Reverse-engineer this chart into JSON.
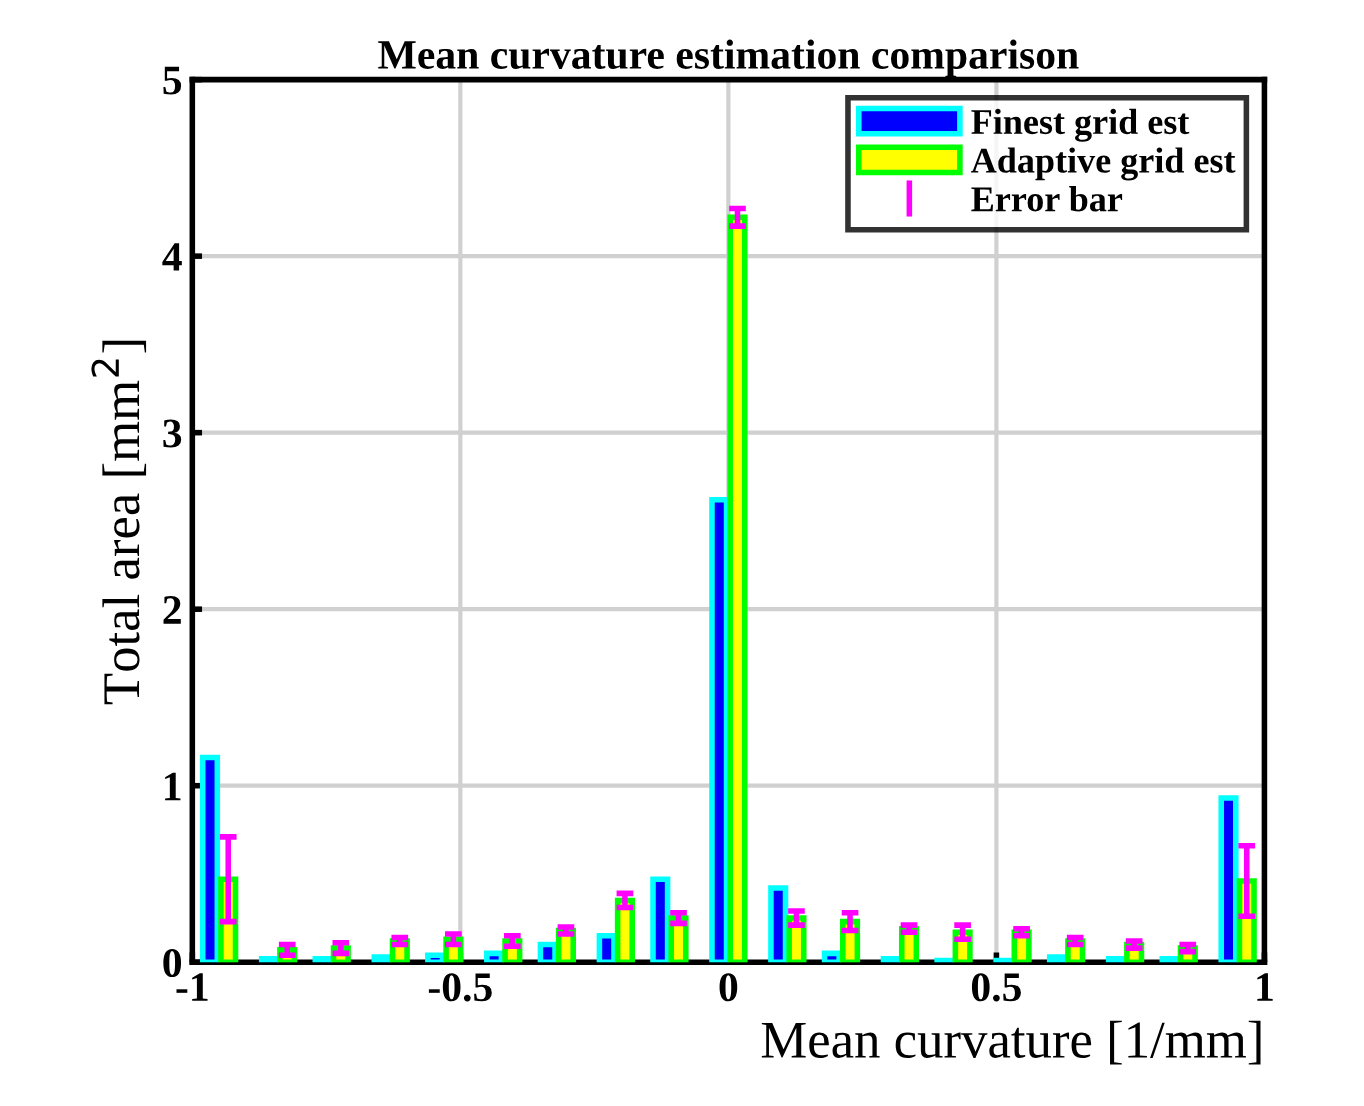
{
  "chart_data": {
    "type": "bar",
    "title": "Mean curvature estimation comparison",
    "xlabel": "Mean curvature [1/mm]",
    "ylabel": "Total area [mm$^{2}$]",
    "x": [
      -0.95,
      -0.84,
      -0.74,
      -0.63,
      -0.53,
      -0.42,
      -0.32,
      -0.21,
      -0.11,
      0,
      0.11,
      0.21,
      0.32,
      0.42,
      0.53,
      0.63,
      0.74,
      0.84,
      0.95
    ],
    "series": [
      {
        "name": "Finest grid est",
        "color": "#0000ff",
        "values": [
          1.16,
          0.02,
          0.02,
          0.03,
          0.04,
          0.05,
          0.1,
          0.15,
          0.47,
          2.62,
          0.42,
          0.05,
          0.02,
          0.01,
          0.01,
          0.03,
          0.02,
          0.02,
          0.93
        ]
      },
      {
        "name": "Adaptive grid est",
        "color": "#ffff00",
        "values": [
          0.47,
          0.07,
          0.08,
          0.12,
          0.13,
          0.12,
          0.18,
          0.35,
          0.25,
          4.22,
          0.25,
          0.23,
          0.19,
          0.17,
          0.17,
          0.12,
          0.1,
          0.08,
          0.46
        ],
        "errors": [
          0.24,
          0.03,
          0.03,
          0.02,
          0.03,
          0.03,
          0.02,
          0.04,
          0.03,
          0.05,
          0.04,
          0.05,
          0.02,
          0.04,
          0.02,
          0.02,
          0.02,
          0.02,
          0.2
        ]
      }
    ],
    "annotations": [
      "Error bar"
    ],
    "xlim": [
      -1,
      1
    ],
    "xticks": [
      -1,
      -0.5,
      0,
      0.5,
      1
    ],
    "ylim": [
      0,
      5
    ],
    "yticks": [
      0,
      1,
      2,
      3,
      4,
      5
    ],
    "grid": true,
    "legend": "top right"
  }
}
